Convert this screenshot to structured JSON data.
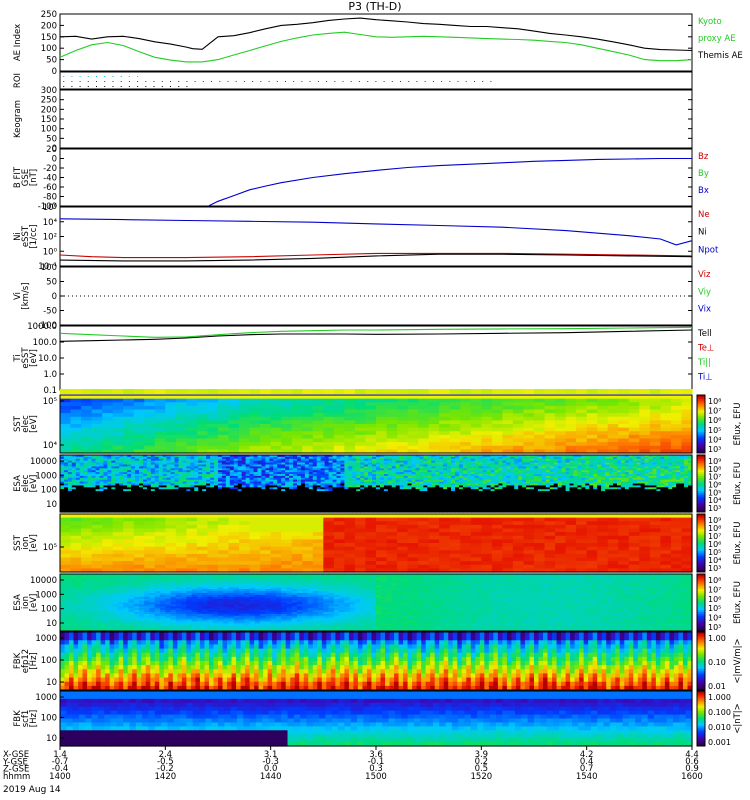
{
  "title": "P3 (TH-D)",
  "date_label": "2019 Aug 14",
  "colors": {
    "black": "#000000",
    "green": "#22cc22",
    "red": "#cc0000",
    "blue": "#0000cc",
    "cyan": "#00bbdd"
  },
  "chart_data": [
    {
      "id": "ae",
      "type": "line",
      "ylabel": "AE Index",
      "ylim": [
        0,
        250
      ],
      "yticks": [
        "0",
        "50",
        "100",
        "150",
        "200",
        "250"
      ],
      "legend": [
        {
          "text": "Kyoto",
          "color": "#22cc22"
        },
        {
          "text": "proxy AE",
          "color": "#22cc22"
        },
        {
          "text": "Themis AE",
          "color": "#000000"
        }
      ],
      "series": [
        {
          "color": "#000000",
          "x": [
            1400,
            1405,
            1410,
            1415,
            1420,
            1425,
            1430,
            1435,
            1440,
            1442,
            1445,
            1450,
            1455,
            1460,
            1465,
            1470,
            1475,
            1480,
            1485,
            1490,
            1495,
            1500,
            1505,
            1510,
            1515,
            1520,
            1525,
            1530,
            1535,
            1540,
            1545,
            1550,
            1555,
            1560,
            1565,
            1570,
            1575,
            1580,
            1585,
            1590,
            1595,
            1600
          ],
          "y": [
            150,
            152,
            140,
            150,
            152,
            142,
            128,
            118,
            105,
            98,
            95,
            150,
            155,
            168,
            185,
            200,
            205,
            212,
            222,
            228,
            232,
            225,
            220,
            215,
            208,
            205,
            200,
            195,
            195,
            190,
            185,
            175,
            165,
            158,
            150,
            140,
            128,
            115,
            100,
            94,
            92,
            90
          ]
        },
        {
          "color": "#22cc22",
          "x": [
            1400,
            1405,
            1410,
            1415,
            1420,
            1425,
            1430,
            1435,
            1440,
            1445,
            1450,
            1455,
            1460,
            1465,
            1470,
            1475,
            1480,
            1485,
            1490,
            1495,
            1500,
            1505,
            1510,
            1515,
            1520,
            1525,
            1530,
            1535,
            1540,
            1545,
            1550,
            1555,
            1560,
            1565,
            1570,
            1575,
            1580,
            1585,
            1590,
            1595,
            1600
          ],
          "y": [
            60,
            90,
            115,
            125,
            112,
            85,
            60,
            48,
            40,
            40,
            50,
            70,
            90,
            110,
            130,
            145,
            158,
            165,
            170,
            160,
            150,
            148,
            150,
            152,
            150,
            148,
            145,
            142,
            140,
            138,
            135,
            130,
            125,
            115,
            100,
            85,
            70,
            50,
            45,
            45,
            50
          ]
        }
      ]
    },
    {
      "id": "roi",
      "type": "scatter",
      "ylabel": "ROI",
      "ylim": [
        0,
        4
      ],
      "yticks": []
    },
    {
      "id": "keogram",
      "type": "line",
      "ylabel": "Keogram",
      "ylim": [
        0,
        300
      ],
      "yticks": [
        "0",
        "50",
        "100",
        "150",
        "200",
        "250",
        "300"
      ]
    },
    {
      "id": "bfit",
      "type": "line",
      "ylabel": "B FIT",
      "ylabel2": "GSE",
      "ylabel3": "[nT]",
      "ylim": [
        -100,
        20
      ],
      "yticks": [
        "-100",
        "-80",
        "-60",
        "-40",
        "-20",
        "0",
        "20"
      ],
      "legend": [
        {
          "text": "Bz",
          "color": "#cc0000"
        },
        {
          "text": "By",
          "color": "#22cc22"
        },
        {
          "text": "Bx",
          "color": "#0000cc"
        }
      ],
      "series": [
        {
          "color": "#0000cc",
          "x": [
            1447,
            1450,
            1455,
            1460,
            1465,
            1470,
            1480,
            1490,
            1500,
            1510,
            1520,
            1530,
            1540,
            1550,
            1560,
            1570,
            1580,
            1590,
            1600
          ],
          "y": [
            -100,
            -90,
            -78,
            -66,
            -58,
            -51,
            -40,
            -32,
            -25,
            -19,
            -15,
            -12,
            -9,
            -6,
            -4,
            -2,
            -1,
            0,
            0
          ]
        }
      ]
    },
    {
      "id": "ni",
      "type": "line",
      "ylabel": "Ni",
      "ylabel2": "eSST",
      "ylabel3": "[1/cc]",
      "ylog": true,
      "ylim": [
        -1,
        6
      ],
      "yticks": [
        "10⁻¹",
        "10⁰",
        "10²",
        "10⁴",
        "10⁶"
      ],
      "legend": [
        {
          "text": "Ne",
          "color": "#cc0000"
        },
        {
          "text": "Ni",
          "color": "#000000"
        },
        {
          "text": "Npot",
          "color": "#0000cc"
        }
      ],
      "series": [
        {
          "color": "#0000cc",
          "x": [
            1400,
            1420,
            1440,
            1460,
            1480,
            1500,
            1520,
            1540,
            1560,
            1580,
            1590,
            1595,
            1600
          ],
          "y": [
            4.6,
            4.5,
            4.4,
            4.3,
            4.2,
            4.0,
            3.8,
            3.6,
            3.2,
            2.6,
            2.2,
            1.5,
            2.0
          ]
        },
        {
          "color": "#cc0000",
          "x": [
            1400,
            1410,
            1420,
            1440,
            1460,
            1480,
            1500,
            1520,
            1540,
            1560,
            1580,
            1600
          ],
          "y": [
            0.3,
            0.1,
            0.0,
            0.0,
            0.1,
            0.3,
            0.5,
            0.5,
            0.5,
            0.4,
            0.3,
            0.2
          ]
        },
        {
          "color": "#000000",
          "x": [
            1400,
            1420,
            1440,
            1460,
            1480,
            1500,
            1520,
            1540,
            1560,
            1580,
            1600
          ],
          "y": [
            -0.3,
            -0.4,
            -0.4,
            -0.3,
            -0.1,
            0.2,
            0.4,
            0.4,
            0.3,
            0.2,
            0.1
          ]
        }
      ]
    },
    {
      "id": "vi",
      "type": "line",
      "ylabel": "Vi",
      "ylabel2": "[km/s]",
      "ylim": [
        -120,
        120
      ],
      "yticks": [
        "-100",
        "-50",
        "0",
        "50",
        "100"
      ],
      "legend": [
        {
          "text": "Viz",
          "color": "#cc0000"
        },
        {
          "text": "Viy",
          "color": "#22cc22"
        },
        {
          "text": "Vix",
          "color": "#0000cc"
        }
      ]
    },
    {
      "id": "ti",
      "type": "line",
      "ylabel": "Ti",
      "ylabel2": "eSST",
      "ylabel3": "[eV]",
      "ylog": true,
      "ylim": [
        -1.2,
        3.6
      ],
      "yticks": [
        "0.1",
        "1.0",
        "10.0",
        "100.0",
        "1000.0"
      ],
      "legend": [
        {
          "text": "Tell",
          "color": "#000000"
        },
        {
          "text": "Te⊥",
          "color": "#cc0000"
        },
        {
          "text": "Ti||",
          "color": "#22cc22"
        },
        {
          "text": "Ti⊥",
          "color": "#0000cc"
        }
      ],
      "series": [
        {
          "color": "#22cc22",
          "x": [
            1400,
            1410,
            1420,
            1430,
            1440,
            1450,
            1460,
            1470,
            1480,
            1490,
            1500,
            1510,
            1520,
            1540,
            1560,
            1580,
            1600
          ],
          "y": [
            3.05,
            2.95,
            2.85,
            2.75,
            2.78,
            2.95,
            3.1,
            3.2,
            3.25,
            3.3,
            3.3,
            3.32,
            3.35,
            3.38,
            3.4,
            3.45,
            3.5
          ]
        },
        {
          "color": "#000000",
          "x": [
            1400,
            1410,
            1420,
            1430,
            1440,
            1450,
            1460,
            1470,
            1480,
            1490,
            1500,
            1520,
            1540,
            1560,
            1580,
            1600
          ],
          "y": [
            2.45,
            2.5,
            2.55,
            2.6,
            2.7,
            2.85,
            2.95,
            3.0,
            3.0,
            3.0,
            2.98,
            3.0,
            3.05,
            3.1,
            3.2,
            3.3
          ]
        }
      ]
    },
    {
      "id": "sst_e",
      "type": "heatmap",
      "ylabel": "SST",
      "ylabel2": "elec",
      "ylabel3": "[eV]",
      "yticks": [
        "10⁴",
        "10⁵"
      ],
      "cbar_label": "Eflux, EFU",
      "cbar_ticks": [
        "10⁸",
        "10⁷",
        "10⁶",
        "10⁵",
        "10⁴",
        "10³"
      ]
    },
    {
      "id": "esa_e",
      "type": "heatmap",
      "ylabel": "ESA",
      "ylabel2": "elec",
      "ylabel3": "[eV]",
      "yticks": [
        "10",
        "100",
        "1000",
        "10000"
      ],
      "cbar_label": "Eflux, EFU",
      "cbar_ticks": [
        "10⁹",
        "10⁸",
        "10⁷",
        "10⁶",
        "10⁵",
        "10⁴",
        "10³"
      ]
    },
    {
      "id": "sst_i",
      "type": "heatmap",
      "ylabel": "SST",
      "ylabel2": "ion",
      "ylabel3": "[eV]",
      "yticks": [
        "10⁵"
      ],
      "cbar_label": "Eflux, EFU",
      "cbar_ticks": [
        "10⁹",
        "10⁸",
        "10⁷",
        "10⁶",
        "10⁵",
        "10⁴",
        "10³"
      ]
    },
    {
      "id": "esa_i",
      "type": "heatmap",
      "ylabel": "ESA",
      "ylabel2": "ion",
      "ylabel3": "[eV]",
      "yticks": [
        "10",
        "100",
        "1000",
        "10000"
      ],
      "cbar_label": "Eflux, EFU",
      "cbar_ticks": [
        "10⁸",
        "10⁷",
        "10⁶",
        "10⁵",
        "10⁴",
        "10³"
      ]
    },
    {
      "id": "fbk_e",
      "type": "heatmap",
      "ylabel": "FBK",
      "ylabel2": "efp12",
      "ylabel3": "[Hz]",
      "yticks": [
        "10",
        "100",
        "1000"
      ],
      "cbar_label": "<|mV/m|>",
      "cbar_ticks": [
        "1.00",
        "0.10",
        "0.01"
      ]
    },
    {
      "id": "fbk_b",
      "type": "heatmap",
      "ylabel": "FBK",
      "ylabel2": "scf1",
      "ylabel3": "[Hz]",
      "yticks": [
        "10",
        "100",
        "1000"
      ],
      "cbar_label": "<|nT|>",
      "cbar_ticks": [
        "1.000",
        "0.100",
        "0.010",
        "0.001"
      ]
    }
  ],
  "xaxis": {
    "row_labels": [
      "X-GSE",
      "Y-GSE",
      "Z-GSE",
      "hhmm"
    ],
    "columns": [
      {
        "X": "1.4",
        "Y": "-0.7",
        "Z": "-0.4",
        "hhmm": "1400"
      },
      {
        "X": "2.4",
        "Y": "-0.5",
        "Z": "-0.2",
        "hhmm": "1420"
      },
      {
        "X": "3.1",
        "Y": "-0.3",
        "Z": "0.0",
        "hhmm": "1440"
      },
      {
        "X": "3.6",
        "Y": "-0.1",
        "Z": "0.3",
        "hhmm": "1500"
      },
      {
        "X": "3.9",
        "Y": "0.2",
        "Z": "0.5",
        "hhmm": "1520"
      },
      {
        "X": "4.2",
        "Y": "0.4",
        "Z": "0.7",
        "hhmm": "1540"
      },
      {
        "X": "4.4",
        "Y": "0.6",
        "Z": "0.9",
        "hhmm": "1600"
      }
    ]
  }
}
